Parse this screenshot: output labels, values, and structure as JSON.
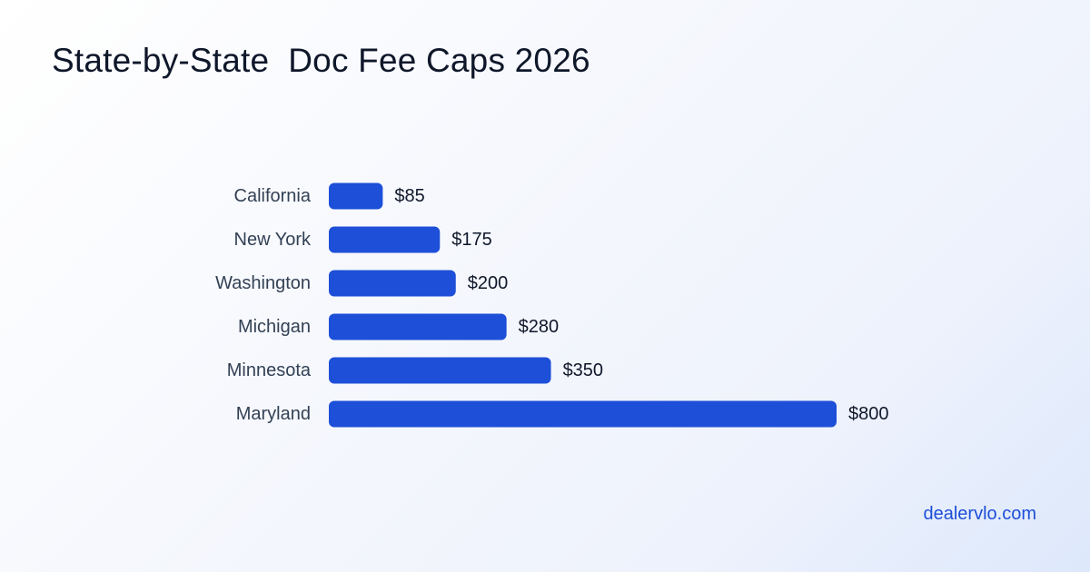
{
  "title": "State-by-State  Doc Fee Caps 2026",
  "brand": "dealervlo.com",
  "colors": {
    "bar": "#1d4fd8",
    "accent": "#1d4ed8"
  },
  "chart_data": {
    "type": "bar",
    "orientation": "horizontal",
    "title": "State-by-State  Doc Fee Caps 2026",
    "categories": [
      "California",
      "New York",
      "Washington",
      "Michigan",
      "Minnesota",
      "Maryland"
    ],
    "values": [
      85,
      175,
      200,
      280,
      350,
      800
    ],
    "value_labels": [
      "$85",
      "$175",
      "$200",
      "$280",
      "$350",
      "$800"
    ],
    "xlim": [
      0,
      800
    ],
    "grid": false,
    "legend": "none"
  }
}
